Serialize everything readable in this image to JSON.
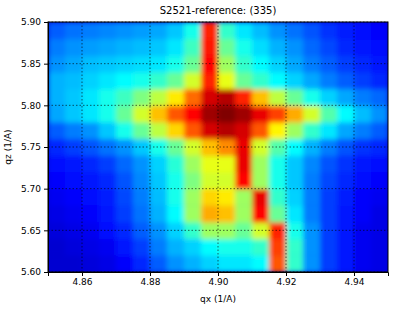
{
  "chart_data": {
    "type": "heatmap",
    "title": "S2521-reference: (335)",
    "xlabel": "qx (1/A)",
    "ylabel": "qz (1/A)",
    "xlim": [
      4.85,
      4.95
    ],
    "ylim": [
      5.6,
      5.9
    ],
    "xticks": [
      4.86,
      4.88,
      {
        "value": 4.9,
        "label": "4.90"
      },
      4.92,
      4.94
    ],
    "yticks": [
      {
        "value": 5.6,
        "label": "5.60"
      },
      5.65,
      {
        "value": 5.7,
        "label": "5.70"
      },
      5.75,
      {
        "value": 5.8,
        "label": "5.80"
      },
      5.85,
      {
        "value": 5.9,
        "label": "5.90"
      }
    ],
    "grid": true,
    "x": [
      4.8525,
      4.8575,
      4.8625,
      4.8675,
      4.8725,
      4.8775,
      4.8825,
      4.8875,
      4.8925,
      4.8975,
      4.9025,
      4.9075,
      4.9125,
      4.9175,
      4.9225,
      4.9275,
      4.9325,
      4.9375,
      4.9425,
      4.9475
    ],
    "y": [
      5.61,
      5.63,
      5.65,
      5.67,
      5.69,
      5.71,
      5.73,
      5.75,
      5.77,
      5.79,
      5.81,
      5.83,
      5.85,
      5.87,
      5.89
    ],
    "z": [
      [
        0.12,
        0.12,
        0.13,
        0.14,
        0.16,
        0.2,
        0.25,
        0.3,
        0.33,
        0.36,
        0.38,
        0.38,
        0.4,
        0.8,
        0.45,
        0.3,
        0.22,
        0.18,
        0.15,
        0.14
      ],
      [
        0.12,
        0.13,
        0.14,
        0.15,
        0.18,
        0.22,
        0.28,
        0.33,
        0.36,
        0.4,
        0.42,
        0.42,
        0.45,
        0.82,
        0.45,
        0.3,
        0.22,
        0.18,
        0.15,
        0.14
      ],
      [
        0.13,
        0.14,
        0.15,
        0.17,
        0.2,
        0.25,
        0.3,
        0.36,
        0.45,
        0.55,
        0.55,
        0.5,
        0.6,
        0.85,
        0.42,
        0.3,
        0.22,
        0.18,
        0.15,
        0.14
      ],
      [
        0.14,
        0.15,
        0.16,
        0.18,
        0.22,
        0.27,
        0.33,
        0.4,
        0.55,
        0.72,
        0.7,
        0.55,
        0.88,
        0.5,
        0.38,
        0.28,
        0.22,
        0.18,
        0.16,
        0.14
      ],
      [
        0.15,
        0.16,
        0.17,
        0.19,
        0.23,
        0.28,
        0.34,
        0.42,
        0.55,
        0.68,
        0.66,
        0.55,
        0.9,
        0.45,
        0.36,
        0.28,
        0.22,
        0.19,
        0.16,
        0.15
      ],
      [
        0.16,
        0.17,
        0.18,
        0.2,
        0.24,
        0.29,
        0.35,
        0.42,
        0.52,
        0.6,
        0.6,
        0.88,
        0.55,
        0.42,
        0.35,
        0.28,
        0.23,
        0.2,
        0.17,
        0.16
      ],
      [
        0.17,
        0.18,
        0.2,
        0.22,
        0.26,
        0.3,
        0.36,
        0.44,
        0.55,
        0.62,
        0.62,
        0.9,
        0.55,
        0.42,
        0.35,
        0.29,
        0.24,
        0.21,
        0.18,
        0.17
      ],
      [
        0.2,
        0.22,
        0.24,
        0.27,
        0.3,
        0.35,
        0.42,
        0.5,
        0.6,
        0.7,
        0.75,
        0.9,
        0.6,
        0.48,
        0.4,
        0.33,
        0.28,
        0.24,
        0.21,
        0.2
      ],
      [
        0.25,
        0.28,
        0.3,
        0.35,
        0.42,
        0.5,
        0.58,
        0.68,
        0.8,
        0.92,
        0.95,
        0.92,
        0.8,
        0.65,
        0.55,
        0.45,
        0.38,
        0.32,
        0.28,
        0.25
      ],
      [
        0.32,
        0.35,
        0.38,
        0.42,
        0.5,
        0.6,
        0.7,
        0.8,
        0.88,
        0.97,
        1.0,
        0.97,
        0.9,
        0.82,
        0.72,
        0.6,
        0.48,
        0.4,
        0.34,
        0.3
      ],
      [
        0.33,
        0.35,
        0.38,
        0.42,
        0.46,
        0.52,
        0.58,
        0.66,
        0.78,
        0.92,
        0.95,
        0.85,
        0.7,
        0.58,
        0.5,
        0.42,
        0.36,
        0.32,
        0.28,
        0.26
      ],
      [
        0.33,
        0.34,
        0.36,
        0.38,
        0.4,
        0.42,
        0.45,
        0.5,
        0.6,
        0.85,
        0.62,
        0.5,
        0.45,
        0.4,
        0.36,
        0.32,
        0.28,
        0.25,
        0.22,
        0.2
      ],
      [
        0.3,
        0.32,
        0.34,
        0.35,
        0.36,
        0.37,
        0.38,
        0.42,
        0.5,
        0.88,
        0.55,
        0.45,
        0.4,
        0.36,
        0.32,
        0.28,
        0.25,
        0.22,
        0.2,
        0.18
      ],
      [
        0.28,
        0.3,
        0.31,
        0.32,
        0.33,
        0.34,
        0.35,
        0.38,
        0.46,
        0.86,
        0.5,
        0.42,
        0.37,
        0.33,
        0.3,
        0.26,
        0.23,
        0.2,
        0.18,
        0.17
      ],
      [
        0.25,
        0.27,
        0.28,
        0.29,
        0.3,
        0.31,
        0.32,
        0.35,
        0.42,
        0.85,
        0.45,
        0.38,
        0.34,
        0.3,
        0.27,
        0.24,
        0.21,
        0.19,
        0.17,
        0.16
      ]
    ]
  }
}
